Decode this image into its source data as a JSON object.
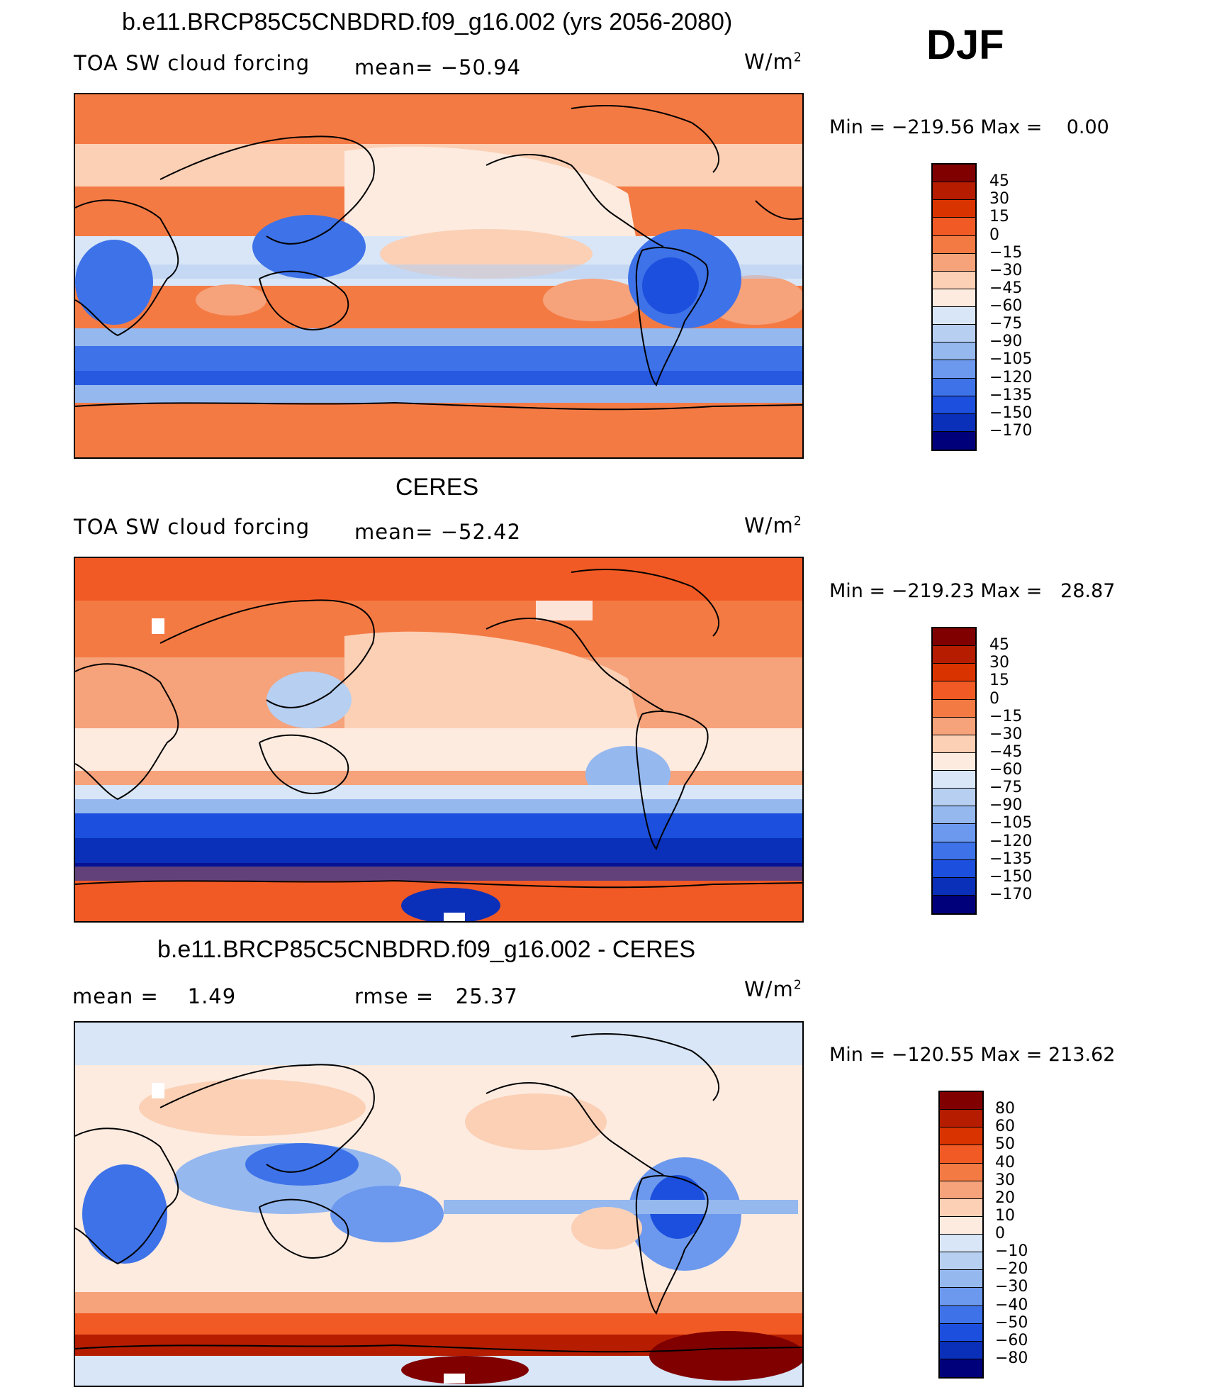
{
  "header": {
    "season": "DJF"
  },
  "panels": [
    {
      "id": "model",
      "title": "b.e11.BRCP85C5CNBDRD.f09_g16.002 (yrs 2056-2080)",
      "left_text": "TOA SW cloud forcing",
      "mid_text": "mean= −50.94",
      "units_base": "W/m",
      "units_exp": "2",
      "minmax": "Min = −219.56 Max =    0.00",
      "colorbar": {
        "colors": [
          "#800000",
          "#b51c00",
          "#d93300",
          "#f15a24",
          "#f47a44",
          "#f6a27a",
          "#fbd0b5",
          "#fdebe0",
          "#d8e6f7",
          "#b7cff1",
          "#95b8ef",
          "#6c99ee",
          "#3e72e8",
          "#1c4fdd",
          "#0a2fb8",
          "#00007a"
        ],
        "labels": [
          "45",
          "30",
          "15",
          "0",
          "−15",
          "−30",
          "−45",
          "−60",
          "−75",
          "−90",
          "−105",
          "−120",
          "−135",
          "−150",
          "−170"
        ]
      }
    },
    {
      "id": "obs",
      "title": "CERES",
      "left_text": "TOA SW cloud forcing",
      "mid_text": "mean= −52.42",
      "units_base": "W/m",
      "units_exp": "2",
      "minmax": "Min = −219.23 Max =   28.87",
      "colorbar": {
        "colors": [
          "#800000",
          "#b51c00",
          "#d93300",
          "#f15a24",
          "#f47a44",
          "#f6a27a",
          "#fbd0b5",
          "#fdebe0",
          "#d8e6f7",
          "#b7cff1",
          "#95b8ef",
          "#6c99ee",
          "#3e72e8",
          "#1c4fdd",
          "#0a2fb8",
          "#00007a"
        ],
        "labels": [
          "45",
          "30",
          "15",
          "0",
          "−15",
          "−30",
          "−45",
          "−60",
          "−75",
          "−90",
          "−105",
          "−120",
          "−135",
          "−150",
          "−170"
        ]
      }
    },
    {
      "id": "diff",
      "title": "b.e11.BRCP85C5CNBDRD.f09_g16.002 - CERES",
      "left_text": "mean =    1.49",
      "mid_text": "rmse =   25.37",
      "units_base": "W/m",
      "units_exp": "2",
      "minmax": "Min = −120.55 Max = 213.62",
      "colorbar": {
        "colors": [
          "#800000",
          "#b51c00",
          "#d93300",
          "#f15a24",
          "#f47a44",
          "#f6a27a",
          "#fbd0b5",
          "#fdebe0",
          "#d8e6f7",
          "#b7cff1",
          "#95b8ef",
          "#6c99ee",
          "#3e72e8",
          "#1c4fdd",
          "#0a2fb8",
          "#00007a"
        ],
        "labels": [
          "80",
          "60",
          "50",
          "40",
          "30",
          "20",
          "10",
          "0",
          "−10",
          "−20",
          "−30",
          "−40",
          "−50",
          "−60",
          "−80"
        ]
      }
    }
  ]
}
